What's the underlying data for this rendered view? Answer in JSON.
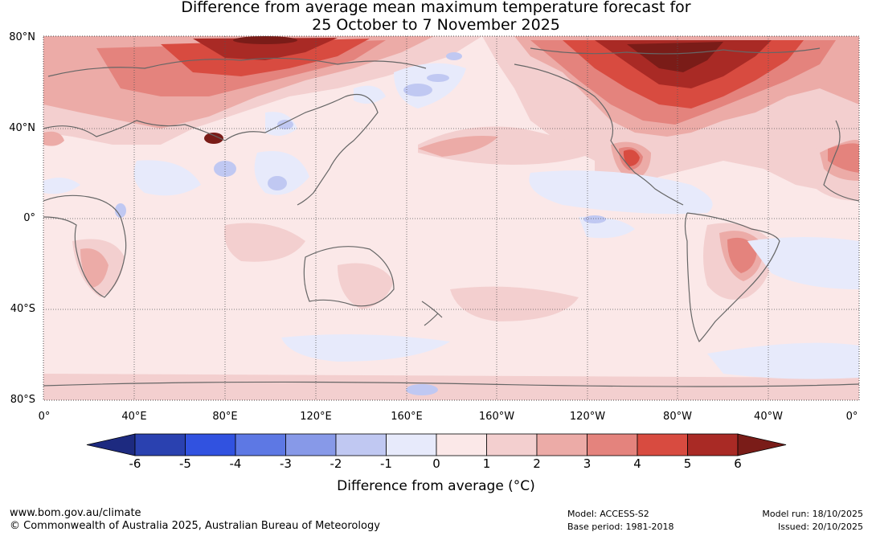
{
  "title": {
    "line1": "Difference from average mean maximum temperature forecast for",
    "line2": "25 October to 7 November 2025"
  },
  "axes": {
    "lat_labels": [
      "80°N",
      "40°N",
      "0°",
      "40°S",
      "80°S"
    ],
    "lon_labels": [
      "0°",
      "40°E",
      "80°E",
      "120°E",
      "160°E",
      "160°W",
      "120°W",
      "80°W",
      "40°W",
      "0°"
    ]
  },
  "colorbar": {
    "ticks": [
      "-6",
      "-5",
      "-4",
      "-3",
      "-2",
      "-1",
      "0",
      "1",
      "2",
      "3",
      "4",
      "5",
      "6"
    ],
    "label": "Difference from average (°C)",
    "colors": [
      "#1d2a80",
      "#2a41b0",
      "#3152e0",
      "#5d78e4",
      "#8799e8",
      "#c0c8f2",
      "#e7eafb",
      "#fbe8e8",
      "#f3cfcf",
      "#ecaba7",
      "#e4837d",
      "#d84b40",
      "#a92a25",
      "#7a1c18"
    ]
  },
  "footer": {
    "website": "www.bom.gov.au/climate",
    "copyright": "© Commonwealth of Australia 2025, Australian Bureau of Meteorology",
    "model": "Model: ACCESS-S2",
    "base_period": "Base period: 1981-2018",
    "model_run": "Model run: 18/10/2025",
    "issued": "Issued: 20/10/2025"
  }
}
